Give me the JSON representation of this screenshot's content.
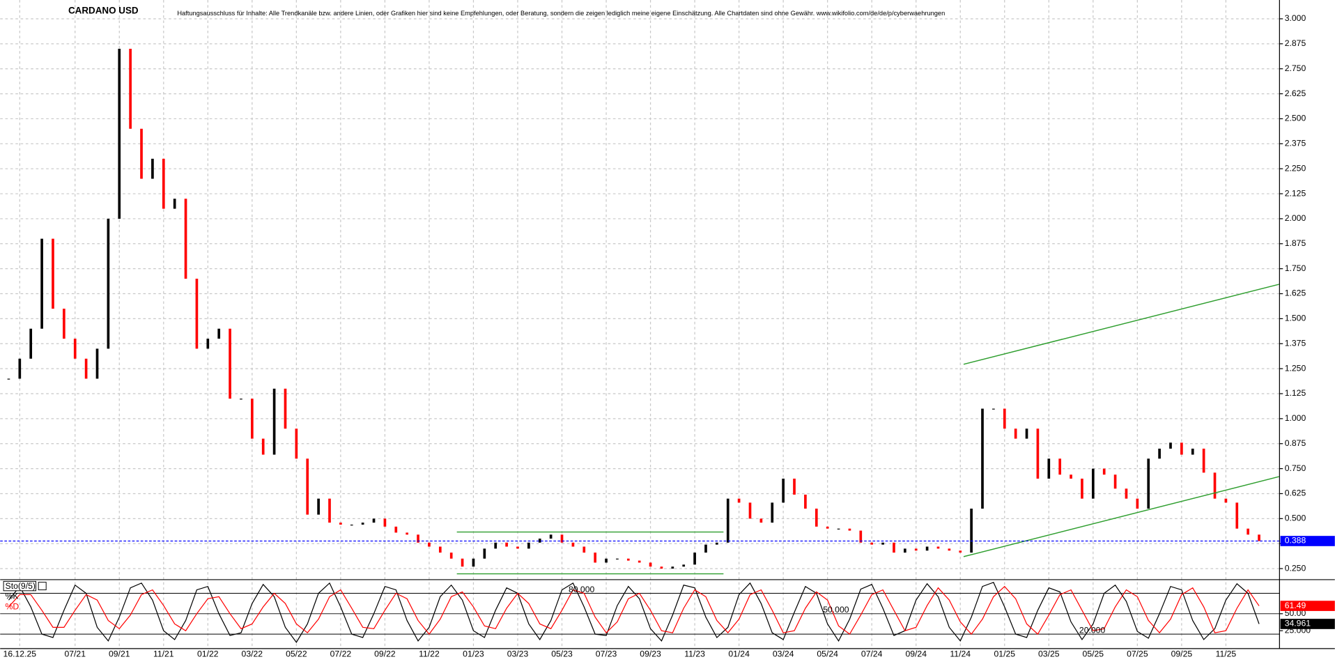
{
  "chart_data": [
    {
      "type": "candlestick",
      "title": "CARDANO USD",
      "subtitle": "Haftungsausschluss für Inhalte: Alle Trendkanäle bzw. andere Linien, oder Grafiken hier sind keine Empfehlungen, oder Beratung, sondern die zeigen lediglich meine eigene Einschätzung. Alle Chartdaten sind ohne Gewähr.  www.wikifolio.com/de/de/p/cyberwaehrungen",
      "values": [
        1.2,
        1.3,
        1.45,
        1.9,
        1.55,
        1.4,
        1.3,
        1.2,
        1.35,
        2.0,
        2.85,
        2.45,
        2.2,
        2.3,
        2.05,
        2.1,
        1.7,
        1.35,
        1.4,
        1.45,
        1.1,
        1.1,
        0.9,
        0.82,
        1.15,
        0.95,
        0.8,
        0.52,
        0.6,
        0.48,
        0.47,
        0.47,
        0.48,
        0.5,
        0.46,
        0.43,
        0.42,
        0.38,
        0.36,
        0.33,
        0.3,
        0.26,
        0.3,
        0.35,
        0.38,
        0.36,
        0.35,
        0.38,
        0.4,
        0.42,
        0.38,
        0.36,
        0.33,
        0.28,
        0.3,
        0.3,
        0.29,
        0.28,
        0.26,
        0.25,
        0.26,
        0.27,
        0.33,
        0.37,
        0.38,
        0.6,
        0.58,
        0.5,
        0.48,
        0.58,
        0.7,
        0.62,
        0.55,
        0.46,
        0.45,
        0.45,
        0.44,
        0.38,
        0.37,
        0.38,
        0.33,
        0.35,
        0.34,
        0.36,
        0.35,
        0.34,
        0.33,
        0.55,
        1.05,
        1.05,
        0.95,
        0.9,
        0.95,
        0.7,
        0.8,
        0.72,
        0.7,
        0.6,
        0.75,
        0.72,
        0.65,
        0.6,
        0.55,
        0.8,
        0.85,
        0.88,
        0.82,
        0.85,
        0.73,
        0.6,
        0.58,
        0.45,
        0.42,
        0.388
      ],
      "up_color": "#000000",
      "down_color": "#ff0000",
      "ylim": [
        0.199,
        3.094
      ],
      "yticks": [
        {
          "value": 0.25,
          "label": "0.250"
        },
        {
          "value": 0.375,
          "label": "0.375"
        },
        {
          "value": 0.5,
          "label": "0.500"
        },
        {
          "value": 0.625,
          "label": "0.625"
        },
        {
          "value": 0.75,
          "label": "0.750"
        },
        {
          "value": 0.875,
          "label": "0.875"
        },
        {
          "value": 1,
          "label": "1.000"
        },
        {
          "value": 1.125,
          "label": "1.125"
        },
        {
          "value": 1.25,
          "label": "1.250"
        },
        {
          "value": 1.375,
          "label": "1.375"
        },
        {
          "value": 1.5,
          "label": "1.500"
        },
        {
          "value": 1.625,
          "label": "1.625"
        },
        {
          "value": 1.75,
          "label": "1.750"
        },
        {
          "value": 1.875,
          "label": "1.875"
        },
        {
          "value": 2,
          "label": "2.000"
        },
        {
          "value": 2.125,
          "label": "2.125"
        },
        {
          "value": 2.25,
          "label": "2.250"
        },
        {
          "value": 2.375,
          "label": "2.375"
        },
        {
          "value": 2.5,
          "label": "2.500"
        },
        {
          "value": 2.625,
          "label": "2.625"
        },
        {
          "value": 2.75,
          "label": "2.750"
        },
        {
          "value": 2.875,
          "label": "2.875"
        },
        {
          "value": 3,
          "label": "3.000"
        }
      ],
      "grid": true,
      "last_color": "#0000ff",
      "trendlines": [
        {
          "x": [
            86.3,
            114.8
          ],
          "y": [
            1.272,
            1.672
          ]
        },
        {
          "x": [
            86.3,
            114.8
          ],
          "y": [
            0.31,
            0.71
          ]
        },
        {
          "x": [
            40.5,
            64.6
          ],
          "y": [
            0.433,
            0.433
          ]
        },
        {
          "x": [
            40.5,
            64.6
          ],
          "y": [
            0.224,
            0.224
          ]
        }
      ],
      "trendline_color": "#2e9e2e"
    },
    {
      "type": "line",
      "title": "Sto(9/5)",
      "categories": [
        null,
        "16.12.25",
        null,
        null,
        null,
        null,
        "07/21",
        null,
        null,
        null,
        "09/21",
        null,
        null,
        null,
        "11/21",
        null,
        null,
        null,
        "01/22",
        null,
        null,
        null,
        "03/22",
        null,
        null,
        null,
        "05/22",
        null,
        null,
        null,
        "07/22",
        null,
        null,
        null,
        "09/22",
        null,
        null,
        null,
        "11/22",
        null,
        null,
        null,
        "01/23",
        null,
        null,
        null,
        "03/23",
        null,
        null,
        null,
        "05/23",
        null,
        null,
        null,
        "07/23",
        null,
        null,
        null,
        "09/23",
        null,
        null,
        null,
        "11/23",
        null,
        null,
        null,
        "01/24",
        null,
        null,
        null,
        "03/24",
        null,
        null,
        null,
        "05/24",
        null,
        null,
        null,
        "07/24",
        null,
        null,
        null,
        "09/24",
        null,
        null,
        null,
        "11/24",
        null,
        null,
        null,
        "01/25",
        null,
        null,
        null,
        "03/25",
        null,
        null,
        null,
        "05/25",
        null,
        null,
        null,
        "07/25",
        null,
        null,
        null,
        "09/25",
        null,
        null,
        null,
        "11/25",
        null,
        null,
        null
      ],
      "series": [
        {
          "name": "%K",
          "color": "#000000",
          "values": [
            70,
            90,
            60,
            20,
            15,
            55,
            92,
            80,
            30,
            10,
            45,
            88,
            95,
            70,
            25,
            12,
            40,
            85,
            90,
            50,
            18,
            22,
            65,
            93,
            75,
            30,
            8,
            35,
            80,
            95,
            60,
            20,
            15,
            50,
            90,
            85,
            40,
            10,
            30,
            75,
            92,
            70,
            25,
            15,
            55,
            88,
            80,
            35,
            12,
            40,
            85,
            95,
            60,
            20,
            18,
            62,
            90,
            72,
            28,
            10,
            48,
            92,
            88,
            45,
            15,
            30,
            78,
            95,
            65,
            22,
            12,
            52,
            90,
            80,
            35,
            10,
            42,
            86,
            93,
            58,
            18,
            25,
            70,
            94,
            75,
            30,
            10,
            45,
            90,
            96,
            60,
            20,
            15,
            55,
            88,
            82,
            38,
            12,
            35,
            80,
            92,
            68,
            24,
            14,
            50,
            90,
            85,
            40,
            12,
            28,
            70,
            94,
            80,
            34.961
          ]
        },
        {
          "name": "%D",
          "color": "#ff0000",
          "values": [
            60,
            78,
            78,
            55,
            30,
            30,
            55,
            78,
            70,
            40,
            28,
            48,
            78,
            85,
            62,
            35,
            25,
            50,
            72,
            75,
            50,
            28,
            35,
            60,
            80,
            65,
            35,
            22,
            42,
            75,
            85,
            58,
            30,
            28,
            55,
            80,
            72,
            40,
            20,
            42,
            75,
            82,
            60,
            32,
            28,
            58,
            80,
            65,
            35,
            28,
            55,
            85,
            80,
            45,
            22,
            38,
            72,
            80,
            55,
            25,
            22,
            58,
            85,
            75,
            40,
            22,
            42,
            78,
            85,
            55,
            22,
            25,
            58,
            82,
            70,
            32,
            20,
            48,
            78,
            85,
            55,
            25,
            30,
            62,
            88,
            70,
            38,
            20,
            42,
            75,
            90,
            72,
            35,
            20,
            48,
            78,
            85,
            55,
            25,
            28,
            60,
            85,
            75,
            40,
            22,
            42,
            78,
            88,
            60,
            22,
            25,
            58,
            85,
            61.49
          ]
        }
      ],
      "ylim": [
        0,
        100
      ],
      "yticks": [
        {
          "value": 50,
          "label": "50.00"
        },
        {
          "value": 25,
          "label": "25.000"
        }
      ],
      "levels": [
        {
          "value": 80,
          "label": "80.000"
        },
        {
          "value": 50,
          "label": "50.000"
        },
        {
          "value": 20,
          "label": "20.000"
        }
      ]
    }
  ]
}
